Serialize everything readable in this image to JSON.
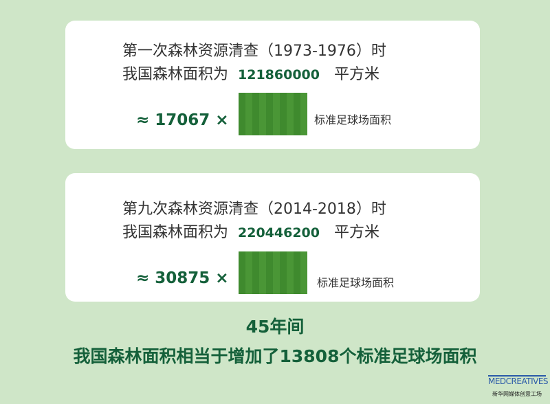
{
  "cards": [
    {
      "line1": "第一次森林资源清查（1973-1976）时",
      "line2_prefix": "我国森林面积为",
      "area": "121860000",
      "unit": "平方米",
      "approx": "≈  17067 ×",
      "caption": "标准足球场面积"
    },
    {
      "line1": "第九次森林资源清查（2014-2018）时",
      "line2_prefix": "我国森林面积为",
      "area": "220446200",
      "unit": "平方米",
      "approx": "≈  30875 ×",
      "caption": "标准足球场面积"
    }
  ],
  "footer": {
    "line1": "45年间",
    "line2": "我国森林面积相当于增加了13808个标准足球场面积"
  },
  "logo": {
    "text": "MEDCREATIVES",
    "sub": "新华网媒体创意工场"
  }
}
